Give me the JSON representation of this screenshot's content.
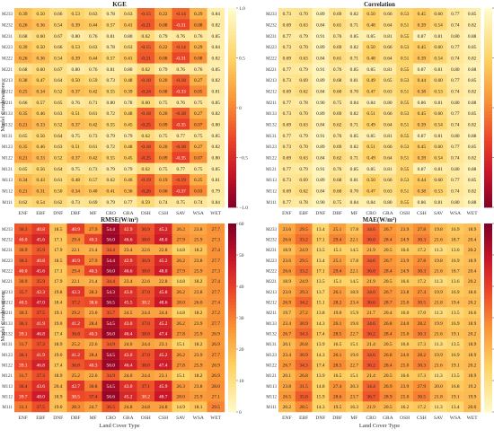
{
  "chart_data": [
    {
      "type": "heatmap",
      "title": "KGE",
      "xlabel": "",
      "ylabel": "Model Combinations",
      "categories": [
        "ENF",
        "EBF",
        "DNF",
        "DBF",
        "MF",
        "CRO",
        "GRA",
        "OSH",
        "CSH",
        "SAV",
        "WSA",
        "WET"
      ],
      "rows": [
        "M233",
        "M232",
        "M231",
        "M223",
        "M222",
        "M221",
        "M213",
        "M212",
        "M211",
        "M133",
        "M132",
        "M131",
        "M123",
        "M122",
        "M121",
        "M113",
        "M112",
        "M111"
      ],
      "colorbar": {
        "min": -1.0,
        "max": 1.0,
        "ticks": [
          "1.0",
          "0.5",
          "0",
          "−0.5",
          "−1.0"
        ],
        "palette": "diverging-red-yellow"
      },
      "values": [
        [
          0.39,
          0.5,
          0.66,
          0.53,
          0.63,
          0.78,
          0.63,
          -0.15,
          0.22,
          -0.14,
          0.29,
          0.84
        ],
        [
          0.26,
          0.36,
          0.54,
          0.39,
          0.44,
          0.57,
          0.41,
          -0.21,
          0.08,
          -0.31,
          0.08,
          0.82
        ],
        [
          0.68,
          0.6,
          0.67,
          0.8,
          0.76,
          0.81,
          0.8,
          0.62,
          0.79,
          0.76,
          0.76,
          0.85
        ],
        [
          0.39,
          0.5,
          0.66,
          0.53,
          0.63,
          0.78,
          0.63,
          -0.15,
          0.22,
          -0.14,
          0.29,
          0.84
        ],
        [
          0.26,
          0.36,
          0.54,
          0.39,
          0.44,
          0.57,
          0.41,
          -0.21,
          0.08,
          -0.31,
          0.08,
          0.82
        ],
        [
          0.68,
          0.6,
          0.67,
          0.8,
          0.76,
          0.81,
          0.8,
          0.62,
          0.79,
          0.76,
          0.76,
          0.85
        ],
        [
          0.38,
          0.47,
          0.64,
          0.5,
          0.59,
          0.73,
          0.48,
          -0.18,
          0.2,
          -0.18,
          0.27,
          0.82
        ],
        [
          0.25,
          0.34,
          0.52,
          0.37,
          0.42,
          0.55,
          0.39,
          -0.24,
          0.08,
          -0.33,
          0.05,
          0.81
        ],
        [
          0.66,
          0.57,
          0.65,
          0.76,
          0.71,
          0.8,
          0.78,
          0.6,
          0.75,
          0.76,
          0.75,
          0.85
        ],
        [
          0.35,
          0.46,
          0.63,
          0.51,
          0.61,
          0.72,
          0.48,
          -0.18,
          0.2,
          -0.18,
          0.27,
          0.82
        ],
        [
          0.21,
          0.33,
          0.52,
          0.37,
          0.42,
          0.55,
          0.45,
          -0.25,
          0.09,
          -0.35,
          0.07,
          0.8
        ],
        [
          0.65,
          0.56,
          0.64,
          0.75,
          0.73,
          0.79,
          0.79,
          0.62,
          0.75,
          0.77,
          0.75,
          0.85
        ],
        [
          0.35,
          0.46,
          0.63,
          0.51,
          0.61,
          0.72,
          0.48,
          -0.18,
          0.2,
          -0.18,
          0.27,
          0.82
        ],
        [
          0.21,
          0.33,
          0.52,
          0.37,
          0.42,
          0.55,
          0.45,
          -0.25,
          0.09,
          -0.35,
          0.07,
          0.8
        ],
        [
          0.65,
          0.56,
          0.64,
          0.75,
          0.73,
          0.79,
          0.79,
          0.62,
          0.75,
          0.77,
          0.75,
          0.85
        ],
        [
          0.34,
          0.43,
          0.61,
          0.48,
          0.57,
          0.62,
          0.46,
          -0.19,
          0.19,
          -0.19,
          0.25,
          0.81
        ],
        [
          0.21,
          0.31,
          0.5,
          0.34,
          0.4,
          0.41,
          0.36,
          -0.26,
          0.06,
          -0.37,
          0.03,
          0.79
        ],
        [
          0.62,
          0.54,
          0.62,
          0.73,
          0.69,
          0.79,
          0.77,
          0.59,
          0.74,
          0.75,
          0.74,
          0.84
        ]
      ]
    },
    {
      "type": "heatmap",
      "title": "Correlation",
      "xlabel": "",
      "ylabel": "",
      "categories": [
        "ENF",
        "EBF",
        "DNF",
        "DBF",
        "MF",
        "CRO",
        "GRA",
        "OSH",
        "CSH",
        "SAV",
        "WSA",
        "WET"
      ],
      "rows": [
        "M233",
        "M232",
        "M231",
        "M223",
        "M222",
        "M221",
        "M213",
        "M212",
        "M211",
        "M133",
        "M132",
        "M131",
        "M123",
        "M122",
        "M121",
        "M113",
        "M112",
        "M111"
      ],
      "colorbar": {
        "min": -1.0,
        "max": 1.0,
        "ticks": [
          "1.0",
          "0.5",
          "0",
          "−0.5",
          "−1.0"
        ],
        "palette": "diverging-red-yellow"
      },
      "values": [
        [
          0.73,
          0.7,
          0.89,
          0.69,
          0.82,
          0.5,
          0.66,
          0.53,
          0.45,
          0.6,
          0.77,
          0.85
        ],
        [
          0.69,
          0.63,
          0.84,
          0.61,
          0.71,
          0.48,
          0.64,
          0.51,
          0.39,
          0.54,
          0.74,
          0.82
        ],
        [
          0.77,
          0.79,
          0.91,
          0.76,
          0.85,
          0.85,
          0.81,
          0.55,
          0.87,
          0.81,
          0.8,
          0.88
        ],
        [
          0.73,
          0.7,
          0.89,
          0.69,
          0.82,
          0.5,
          0.66,
          0.53,
          0.45,
          0.6,
          0.77,
          0.85
        ],
        [
          0.69,
          0.63,
          0.84,
          0.61,
          0.71,
          0.48,
          0.64,
          0.51,
          0.39,
          0.54,
          0.74,
          0.82
        ],
        [
          0.77,
          0.79,
          0.91,
          0.76,
          0.85,
          0.85,
          0.81,
          0.55,
          0.87,
          0.81,
          0.8,
          0.88
        ],
        [
          0.73,
          0.69,
          0.89,
          0.68,
          0.81,
          0.49,
          0.65,
          0.53,
          0.44,
          0.6,
          0.77,
          0.85
        ],
        [
          0.69,
          0.62,
          0.84,
          0.6,
          0.7,
          0.47,
          0.63,
          0.51,
          0.38,
          0.53,
          0.74,
          0.82
        ],
        [
          0.77,
          0.78,
          0.9,
          0.75,
          0.84,
          0.84,
          0.8,
          0.55,
          0.86,
          0.81,
          0.8,
          0.88
        ],
        [
          0.73,
          0.7,
          0.89,
          0.69,
          0.82,
          0.51,
          0.66,
          0.53,
          0.45,
          0.6,
          0.77,
          0.85
        ],
        [
          0.69,
          0.63,
          0.84,
          0.62,
          0.71,
          0.49,
          0.64,
          0.51,
          0.39,
          0.54,
          0.74,
          0.82
        ],
        [
          0.77,
          0.79,
          0.91,
          0.76,
          0.85,
          0.85,
          0.81,
          0.55,
          0.87,
          0.81,
          0.8,
          0.88
        ],
        [
          0.73,
          0.7,
          0.89,
          0.69,
          0.82,
          0.51,
          0.66,
          0.53,
          0.45,
          0.6,
          0.77,
          0.85
        ],
        [
          0.69,
          0.63,
          0.84,
          0.62,
          0.71,
          0.49,
          0.64,
          0.51,
          0.39,
          0.54,
          0.74,
          0.82
        ],
        [
          0.77,
          0.79,
          0.91,
          0.76,
          0.85,
          0.85,
          0.81,
          0.55,
          0.87,
          0.81,
          0.8,
          0.88
        ],
        [
          0.73,
          0.69,
          0.89,
          0.68,
          0.81,
          0.5,
          0.66,
          0.53,
          0.44,
          0.6,
          0.77,
          0.85
        ],
        [
          0.69,
          0.62,
          0.84,
          0.6,
          0.7,
          0.47,
          0.63,
          0.51,
          0.38,
          0.53,
          0.74,
          0.82
        ],
        [
          0.77,
          0.78,
          0.9,
          0.75,
          0.84,
          0.84,
          0.8,
          0.55,
          0.86,
          0.81,
          0.8,
          0.88
        ]
      ]
    },
    {
      "type": "heatmap",
      "title": "RMSE(W/m²)",
      "xlabel": "Land Cover Type",
      "ylabel": "Model Combinations",
      "categories": [
        "ENF",
        "EBF",
        "DNF",
        "DBF",
        "MF",
        "CRO",
        "GRA",
        "OSH",
        "CSH",
        "SAV",
        "WSA",
        "WET"
      ],
      "rows": [
        "M233",
        "M232",
        "M231",
        "M223",
        "M222",
        "M221",
        "M213",
        "M212",
        "M211",
        "M133",
        "M132",
        "M131",
        "M123",
        "M122",
        "M121",
        "M113",
        "M112",
        "M111"
      ],
      "colorbar": {
        "min": 0,
        "max": 60,
        "ticks": [
          "60",
          "50",
          "40",
          "30",
          "20",
          "10",
          "0"
        ],
        "palette": "sequential-yellow-red"
      },
      "values": [
        [
          36.3,
          40.8,
          18.5,
          40.9,
          27.9,
          54.4,
          42.9,
          36.9,
          45.2,
          26.2,
          23.8,
          27.7
        ],
        [
          40.0,
          45.6,
          17.1,
          29.4,
          40.3,
          56.0,
          46.6,
          38.0,
          48.0,
          27.9,
          25.9,
          27.3
        ],
        [
          30.9,
          35.9,
          17.9,
          22.1,
          21.4,
          34.4,
          23.4,
          22.6,
          22.8,
          14.8,
          18.2,
          27.4
        ],
        [
          36.3,
          40.8,
          18.5,
          40.9,
          27.9,
          54.4,
          42.9,
          36.9,
          45.2,
          26.2,
          23.8,
          27.7
        ],
        [
          40.0,
          45.6,
          17.1,
          29.4,
          40.3,
          56.0,
          46.6,
          38.0,
          48.0,
          27.9,
          25.9,
          27.3
        ],
        [
          30.9,
          35.9,
          17.9,
          22.1,
          21.4,
          34.4,
          23.4,
          22.6,
          22.8,
          14.8,
          18.2,
          27.4
        ],
        [
          35.7,
          42.3,
          19.8,
          42.3,
          28.3,
          54.3,
          43.0,
          37.0,
          45.8,
          26.2,
          23.8,
          27.7
        ],
        [
          40.5,
          47.0,
          18.4,
          37.2,
          38.6,
          56.5,
          45.5,
          38.2,
          48.6,
          28.0,
          26.0,
          27.4
        ],
        [
          30.3,
          37.5,
          19.1,
          29.2,
          23.0,
          35.7,
          24.5,
          24.4,
          24.4,
          14.8,
          18.2,
          27.2
        ],
        [
          36.1,
          41.9,
          19.0,
          41.2,
          28.4,
          54.5,
          43.0,
          37.0,
          45.2,
          26.2,
          23.9,
          27.7
        ],
        [
          39.1,
          46.8,
          17.4,
          36.8,
          40.3,
          56.0,
          46.4,
          38.0,
          47.4,
          27.8,
          25.9,
          26.9
        ],
        [
          31.7,
          37.3,
          18.9,
          25.2,
          22.6,
          34.9,
          24.0,
          24.4,
          23.1,
          15.1,
          18.2,
          26.9
        ],
        [
          36.1,
          41.9,
          19.0,
          41.2,
          28.4,
          54.5,
          43.0,
          37.0,
          45.2,
          26.2,
          23.9,
          27.7
        ],
        [
          39.1,
          46.8,
          17.4,
          36.8,
          40.3,
          56.0,
          46.4,
          38.0,
          47.4,
          27.8,
          25.9,
          26.9
        ],
        [
          31.7,
          37.3,
          18.9,
          25.2,
          22.6,
          34.9,
          24.0,
          24.4,
          23.1,
          15.1,
          18.2,
          26.9
        ],
        [
          36.4,
          43.6,
          20.4,
          42.7,
          30.8,
          54.5,
          43.0,
          37.1,
          45.9,
          26.3,
          23.8,
          28.0
        ],
        [
          39.7,
          48.0,
          18.9,
          38.5,
          37.4,
          56.6,
          45.2,
          38.2,
          48.7,
          28.0,
          25.9,
          27.1
        ],
        [
          31.1,
          37.5,
          19.0,
          28.3,
          24.7,
          36.5,
          24.8,
          24.8,
          24.8,
          14.9,
          18.1,
          29.5
        ]
      ]
    },
    {
      "type": "heatmap",
      "title": "MAE(W/m²)",
      "xlabel": "Land Cover Type",
      "ylabel": "",
      "categories": [
        "ENF",
        "EBF",
        "DNF",
        "DBF",
        "MF",
        "CRO",
        "GRA",
        "OSH",
        "CSH",
        "SAV",
        "WSA",
        "WET"
      ],
      "rows": [
        "M233",
        "M232",
        "M231",
        "M223",
        "M222",
        "M221",
        "M213",
        "M212",
        "M211",
        "M133",
        "M132",
        "M131",
        "M123",
        "M122",
        "M121",
        "M113",
        "M112",
        "M111"
      ],
      "colorbar": {
        "min": 0,
        "max": 60,
        "ticks": [
          "60",
          "50",
          "40",
          "30",
          "20",
          "10",
          "0"
        ],
        "palette": "sequential-yellow-red"
      },
      "values": [
        [
          23.6,
          29.5,
          13.4,
          25.1,
          17.8,
          34.6,
          26.7,
          23.9,
          27.8,
          19.8,
          16.9,
          18.9
        ],
        [
          26.6,
          33.2,
          17.1,
          29.4,
          22.1,
          36.0,
          28.4,
          24.9,
          30.3,
          21.6,
          18.7,
          20.4
        ],
        [
          18.9,
          24.9,
          13.5,
          15.1,
          14.5,
          21.9,
          20.5,
          16.6,
          17.2,
          11.3,
          13.6,
          20.2
        ],
        [
          23.6,
          29.5,
          13.4,
          25.1,
          17.8,
          34.6,
          26.7,
          23.9,
          27.8,
          19.8,
          16.9,
          18.9
        ],
        [
          26.6,
          33.2,
          17.1,
          29.4,
          22.1,
          36.0,
          28.4,
          24.9,
          30.3,
          21.6,
          18.7,
          20.4
        ],
        [
          18.9,
          24.9,
          13.5,
          15.1,
          14.5,
          21.9,
          20.5,
          16.6,
          17.2,
          11.3,
          13.6,
          20.2
        ],
        [
          23.0,
          29.3,
          13.7,
          26.1,
          18.9,
          34.0,
          26.7,
          23.8,
          27.4,
          19.9,
          16.9,
          18.6
        ],
        [
          26.9,
          34.2,
          15.1,
          28.2,
          23.4,
          36.6,
          28.7,
          25.0,
          30.5,
          21.8,
          19.4,
          20.2
        ],
        [
          19.7,
          27.2,
          13.8,
          19.0,
          15.9,
          21.7,
          20.4,
          16.0,
          17.0,
          11.3,
          13.5,
          16.6
        ],
        [
          23.4,
          30.9,
          14.3,
          26.1,
          19.0,
          34.6,
          26.8,
          24.0,
          28.2,
          19.9,
          16.9,
          18.9
        ],
        [
          26.7,
          34.3,
          17.4,
          28.5,
          22.7,
          36.2,
          28.4,
          25.0,
          30.3,
          21.6,
          19.1,
          20.2
        ],
        [
          20.1,
          26.8,
          13.9,
          16.5,
          15.1,
          21.4,
          20.5,
          16.6,
          17.3,
          11.3,
          13.5,
          18.9
        ],
        [
          23.4,
          30.9,
          14.3,
          26.1,
          19.0,
          34.6,
          26.8,
          24.0,
          28.2,
          19.9,
          16.9,
          18.9
        ],
        [
          26.7,
          34.3,
          17.4,
          28.5,
          22.7,
          36.2,
          28.4,
          25.0,
          30.3,
          21.6,
          19.1,
          20.2
        ],
        [
          20.1,
          26.8,
          13.9,
          16.5,
          15.1,
          21.4,
          20.5,
          16.6,
          17.3,
          11.3,
          13.5,
          18.9
        ],
        [
          23.8,
          31.5,
          14.8,
          27.4,
          20.3,
          34.4,
          26.9,
          23.9,
          27.9,
          20.0,
          16.8,
          19.2
        ],
        [
          26.5,
          35.8,
          15.9,
          28.6,
          23.7,
          36.7,
          28.9,
          25.0,
          30.5,
          21.8,
          19.1,
          19.9
        ],
        [
          20.2,
          28.5,
          14.3,
          19.5,
          16.3,
          21.9,
          20.5,
          16.2,
          17.2,
          11.3,
          13.4,
          20.0
        ]
      ]
    }
  ]
}
